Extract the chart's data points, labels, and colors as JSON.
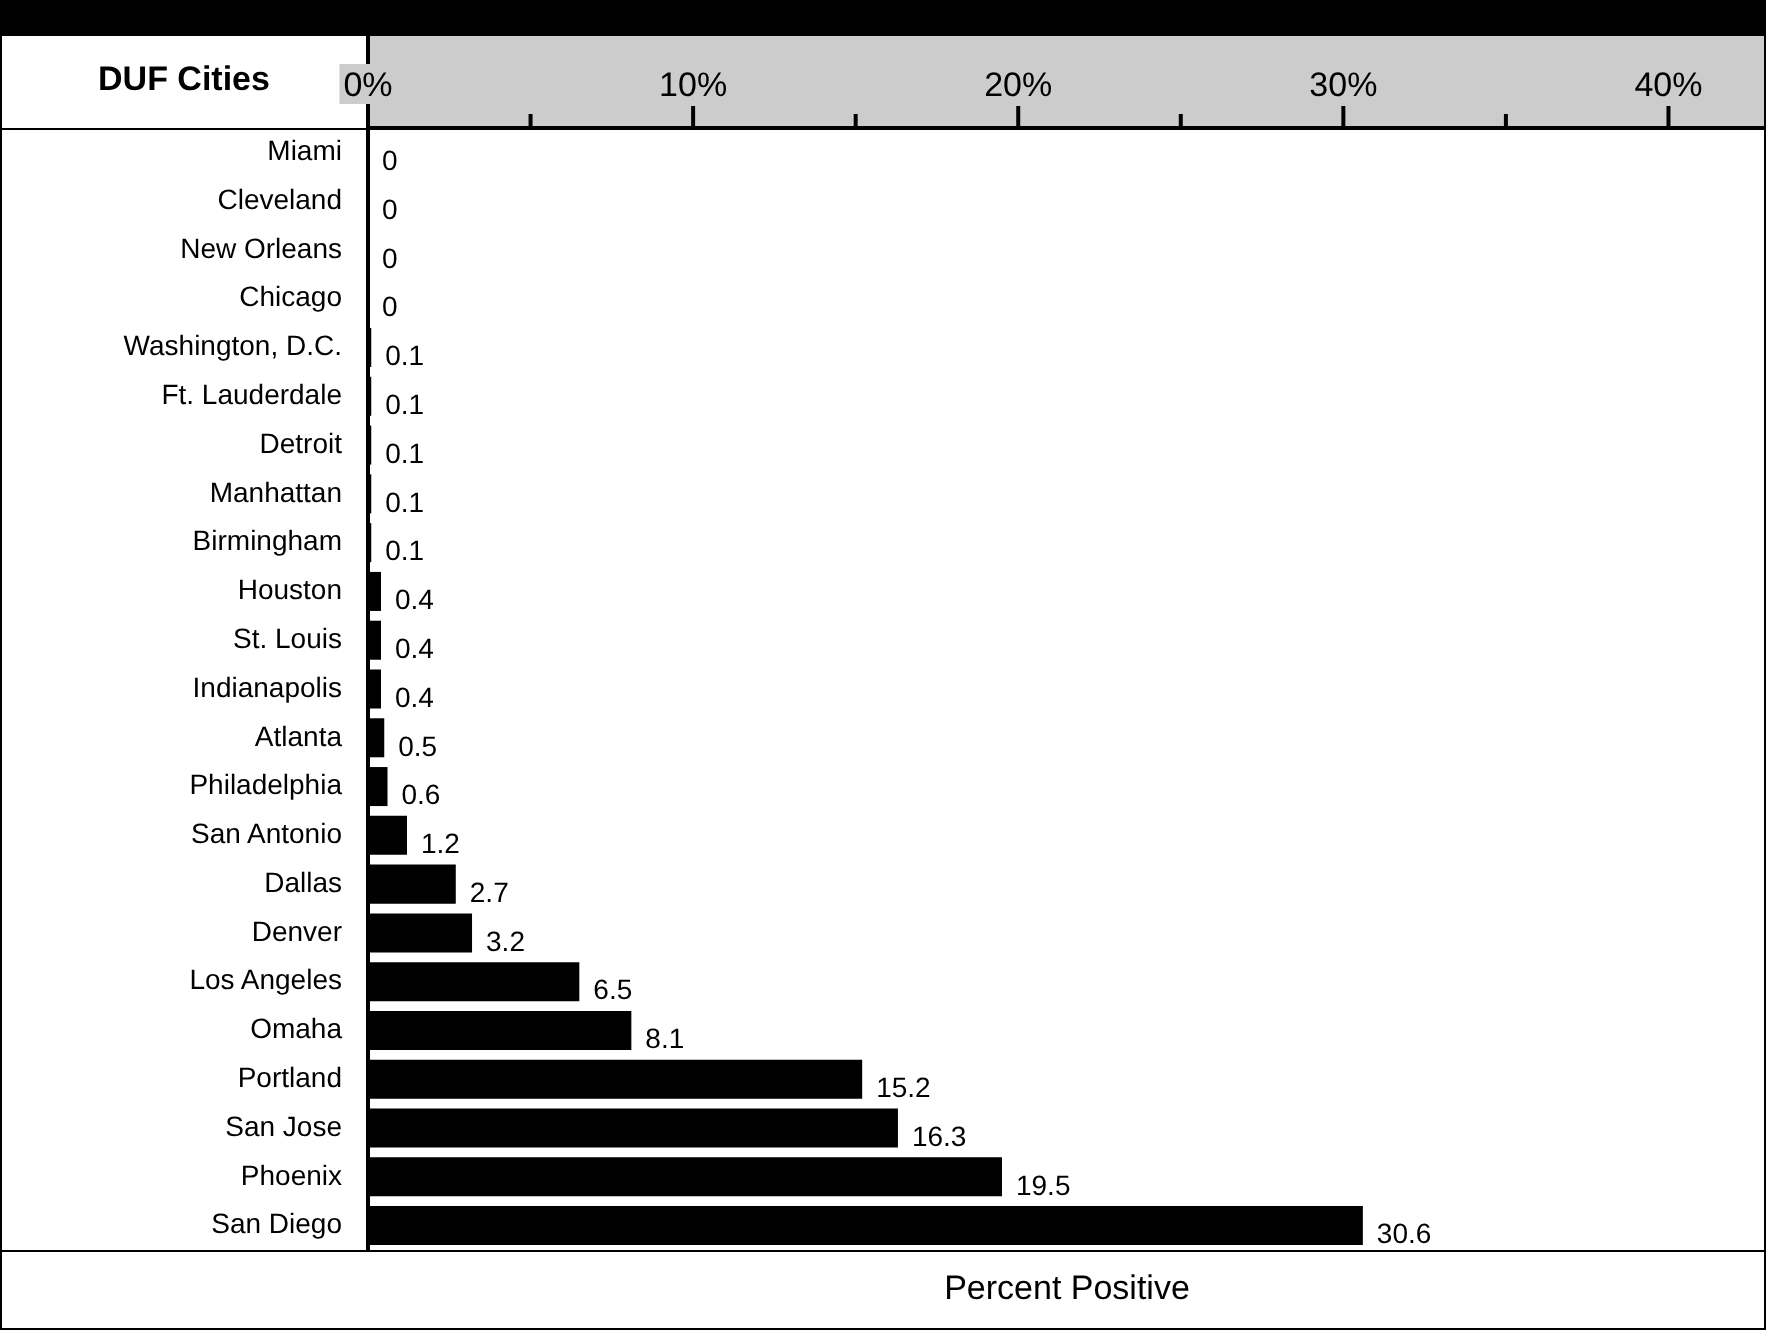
{
  "chart_data": {
    "type": "bar",
    "orientation": "horizontal",
    "ylabel": "DUF Cities",
    "xlabel": "Percent Positive",
    "categories": [
      "Miami",
      "Cleveland",
      "New Orleans",
      "Chicago",
      "Washington, D.C.",
      "Ft. Lauderdale",
      "Detroit",
      "Manhattan",
      "Birmingham",
      "Houston",
      "St. Louis",
      "Indianapolis",
      "Atlanta",
      "Philadelphia",
      "San Antonio",
      "Dallas",
      "Denver",
      "Los Angeles",
      "Omaha",
      "Portland",
      "San Jose",
      "Phoenix",
      "San Diego"
    ],
    "values": [
      0,
      0,
      0,
      0,
      0.1,
      0.1,
      0.1,
      0.1,
      0.1,
      0.4,
      0.4,
      0.4,
      0.5,
      0.6,
      1.2,
      2.7,
      3.2,
      6.5,
      8.1,
      15.2,
      16.3,
      19.5,
      30.6
    ],
    "color": "#000000",
    "data_labels": true,
    "grid": false,
    "legend": false,
    "xlim": [
      0,
      43
    ],
    "xticks": [
      {
        "value": 0,
        "label": "0%"
      },
      {
        "value": 5,
        "label": null
      },
      {
        "value": 10,
        "label": "10%"
      },
      {
        "value": 15,
        "label": null
      },
      {
        "value": 20,
        "label": "20%"
      },
      {
        "value": 25,
        "label": null
      },
      {
        "value": 30,
        "label": "30%"
      },
      {
        "value": 35,
        "label": null
      },
      {
        "value": 40,
        "label": "40%"
      }
    ]
  }
}
